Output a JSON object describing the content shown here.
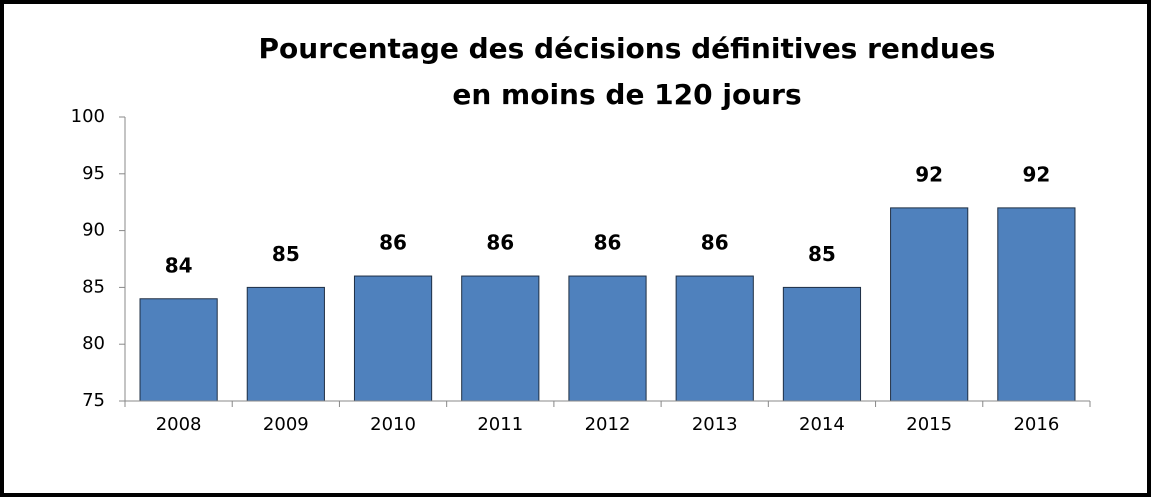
{
  "chart_data": {
    "type": "bar",
    "title": [
      "Pourcentage des décisions définitives rendues",
      "en moins de 120 jours"
    ],
    "categories": [
      "2008",
      "2009",
      "2010",
      "2011",
      "2012",
      "2013",
      "2014",
      "2015",
      "2016"
    ],
    "values": [
      84,
      85,
      86,
      86,
      86,
      86,
      85,
      92,
      92
    ],
    "color": "#4f81bd",
    "ylim": [
      75,
      100
    ],
    "yticks": [
      75,
      80,
      85,
      90,
      95,
      100
    ],
    "grid": false
  }
}
